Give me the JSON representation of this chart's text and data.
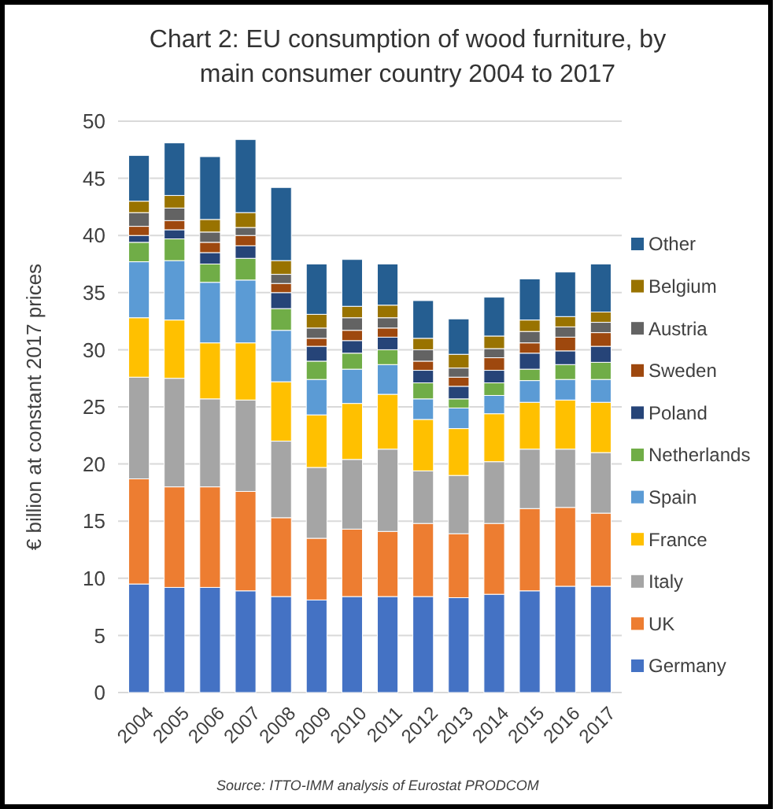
{
  "chart_data": {
    "type": "bar",
    "stacked": true,
    "title": "Chart 2: EU consumption of wood furniture, by main consumer country 2004 to 2017",
    "ylabel": "€ billion at constant 2017 prices",
    "annotations": [
      "Source: ITTO-IMM analysis of Eurostat PRODCOM"
    ],
    "categories": [
      "2004",
      "2005",
      "2006",
      "2007",
      "2008",
      "2009",
      "2010",
      "2011",
      "2012",
      "2013",
      "2014",
      "2015",
      "2016",
      "2017"
    ],
    "ylim": [
      0,
      50
    ],
    "yticks": [
      0,
      5,
      10,
      15,
      20,
      25,
      30,
      35,
      40,
      45,
      50
    ],
    "grid": "y",
    "legend": "right",
    "series": [
      {
        "name": "Germany",
        "color": "#4472c4",
        "values": [
          9.5,
          9.2,
          9.2,
          8.9,
          8.4,
          8.1,
          8.4,
          8.4,
          8.4,
          8.3,
          8.6,
          8.9,
          9.3,
          9.3
        ]
      },
      {
        "name": "UK",
        "color": "#ed7d31",
        "values": [
          9.2,
          8.8,
          8.8,
          8.7,
          6.9,
          5.4,
          5.9,
          5.7,
          6.4,
          5.6,
          6.2,
          7.2,
          6.9,
          6.4
        ]
      },
      {
        "name": "Italy",
        "color": "#a5a5a5",
        "values": [
          8.9,
          9.5,
          7.7,
          8.0,
          6.7,
          6.2,
          6.1,
          7.2,
          4.6,
          5.1,
          5.4,
          5.2,
          5.1,
          5.3
        ]
      },
      {
        "name": "France",
        "color": "#ffc000",
        "values": [
          5.2,
          5.1,
          4.9,
          5.0,
          5.2,
          4.6,
          4.9,
          4.8,
          4.5,
          4.1,
          4.2,
          4.1,
          4.3,
          4.4
        ]
      },
      {
        "name": "Spain",
        "color": "#5b9bd5",
        "values": [
          4.9,
          5.2,
          5.3,
          5.5,
          4.5,
          3.1,
          3.0,
          2.6,
          1.8,
          1.8,
          1.6,
          1.9,
          1.8,
          2.0
        ]
      },
      {
        "name": "Netherlands",
        "color": "#70ad47",
        "values": [
          1.7,
          1.9,
          1.6,
          1.9,
          1.9,
          1.6,
          1.4,
          1.3,
          1.4,
          0.8,
          1.1,
          1.0,
          1.3,
          1.5
        ]
      },
      {
        "name": "Poland",
        "color": "#264478",
        "values": [
          0.6,
          0.8,
          1.0,
          1.1,
          1.4,
          1.3,
          1.1,
          1.1,
          1.1,
          1.1,
          1.1,
          1.4,
          1.2,
          1.4
        ]
      },
      {
        "name": "Sweden",
        "color": "#9e480e",
        "values": [
          0.8,
          0.8,
          0.9,
          0.9,
          0.8,
          0.7,
          0.9,
          0.8,
          0.8,
          0.8,
          1.1,
          0.9,
          1.2,
          1.2
        ]
      },
      {
        "name": "Austria",
        "color": "#636363",
        "values": [
          1.2,
          1.1,
          0.9,
          0.7,
          0.8,
          0.9,
          1.1,
          0.9,
          1.0,
          0.8,
          0.8,
          1.0,
          0.9,
          0.9
        ]
      },
      {
        "name": "Belgium",
        "color": "#997300",
        "values": [
          1.0,
          1.1,
          1.1,
          1.3,
          1.2,
          1.2,
          1.0,
          1.1,
          1.0,
          1.2,
          1.1,
          1.0,
          0.9,
          0.9
        ]
      },
      {
        "name": "Other",
        "color": "#255e91",
        "values": [
          4.0,
          4.6,
          5.5,
          6.4,
          6.4,
          4.4,
          4.1,
          3.6,
          3.3,
          3.1,
          3.4,
          3.6,
          3.9,
          4.2
        ]
      }
    ]
  }
}
